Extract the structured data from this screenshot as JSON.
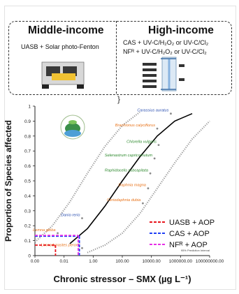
{
  "panel": {
    "middle_title": "Middle-income",
    "middle_label": "UASB + Solar photo-Fenton",
    "high_title": "High-income",
    "high_label_1": "CAS + UV-C/H₂O₂ or UV-C/Cl₂",
    "high_label_2": "NFᴿ + UV-C/H₂O₂ or UV-C/Cl₂",
    "brace": "}"
  },
  "colors": {
    "uasb": "#e8141c",
    "cas": "#1f3ff5",
    "nf": "#e62fe6",
    "curve": "#000000",
    "interval": "#999999",
    "species_red": "#e8741c",
    "species_green": "#2f8a2f",
    "species_blue": "#2a4fb0"
  },
  "chart_data": {
    "type": "line",
    "x_scale": "log",
    "xlabel": "Chronic stressor – SMX (µg L⁻¹)",
    "ylabel": "Proportion of Species affected",
    "xlim": [
      0.001,
      10000000
    ],
    "ylim": [
      0,
      1
    ],
    "x_tick_labels": [
      "0.00",
      "0.01",
      "1.00",
      "100.00",
      "10000.00",
      "1000000.00",
      "100000000.00"
    ],
    "y_tick_labels": [
      "0",
      "0.1",
      "0.2",
      "0.3",
      "0.4",
      "0.5",
      "0.6",
      "0.7",
      "0.8",
      "0.9",
      "1"
    ],
    "grid": false,
    "legend_position": "bottom-right",
    "interval_label": "95% Prediction Interval",
    "series": [
      {
        "name": "",
        "x": [
          0.1,
          1,
          10,
          100,
          1000,
          10000,
          100000,
          1000000
        ],
        "y": [
          0.08,
          0.18,
          0.33,
          0.5,
          0.66,
          0.8,
          0.9,
          0.95
        ]
      }
    ],
    "interval_lower": {
      "x": [
        1,
        10,
        100,
        1000,
        10000,
        100000,
        1000000,
        10000000
      ],
      "y": [
        0.02,
        0.07,
        0.15,
        0.28,
        0.45,
        0.62,
        0.78,
        0.9
      ]
    },
    "interval_upper": {
      "x": [
        0.001,
        0.01,
        0.1,
        1,
        10,
        100,
        1000
      ],
      "y": [
        0.09,
        0.2,
        0.36,
        0.55,
        0.73,
        0.87,
        0.96
      ]
    },
    "species": [
      {
        "name": "Carassius auratus",
        "x": 60000,
        "y": 0.95,
        "color": "species_blue"
      },
      {
        "name": "Brachionus calyciflorus",
        "x": 10000,
        "y": 0.85,
        "color": "species_red"
      },
      {
        "name": "Chlorella vulgaris",
        "x": 12000,
        "y": 0.74,
        "color": "species_green"
      },
      {
        "name": "Selenastrum capricornutum",
        "x": 7000,
        "y": 0.65,
        "color": "species_green"
      },
      {
        "name": "Raphidocelis subcapitata",
        "x": 4000,
        "y": 0.55,
        "color": "species_green"
      },
      {
        "name": "Daphnia magna",
        "x": 3000,
        "y": 0.45,
        "color": "species_red"
      },
      {
        "name": "Ceriodaphnia dubia",
        "x": 1500,
        "y": 0.35,
        "color": "species_red"
      },
      {
        "name": "Danio rerio",
        "x": 0.5,
        "y": 0.25,
        "color": "species_blue"
      },
      {
        "name": "Lemna gibba",
        "x": 0.02,
        "y": 0.15,
        "color": "species_red"
      },
      {
        "name": "Limnodynastes peronii",
        "x": 0.5,
        "y": 0.05,
        "color": "species_red"
      }
    ],
    "legend": [
      {
        "name": "UASB + AOP",
        "color": "uasb",
        "x": 0.015,
        "y": 0.07
      },
      {
        "name": "CAS    + AOP",
        "color": "cas",
        "x": 0.35,
        "y": 0.13
      },
      {
        "name": "NFᴿ    + AOP",
        "color": "nf",
        "x": 0.3,
        "y": 0.135
      }
    ]
  }
}
